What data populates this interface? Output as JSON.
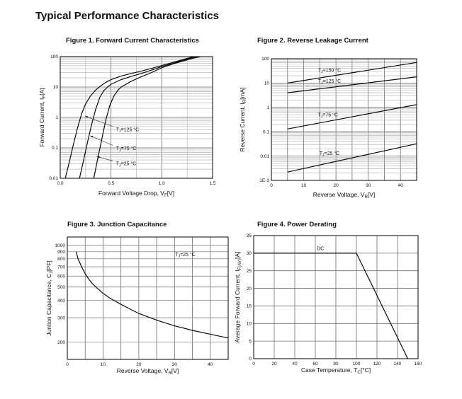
{
  "page": {
    "title": "Typical Performance Characteristics",
    "colors": {
      "background": "#ffffff",
      "text": "#111111",
      "curve": "#0a0a0a",
      "grid_minor": "#ababab",
      "grid_major": "#6e6e6e",
      "border": "#000000"
    }
  },
  "chart_data": [
    {
      "id": "figure-1",
      "type": "line",
      "title": "Figure 1. Forward Current Characteristics",
      "xlabel": "Forward Voltage Drop, V_{F}[V]",
      "ylabel": "Forward Current, I_{F}[A]",
      "x_axis": {
        "min": 0,
        "max": 1.5,
        "scale": "linear",
        "grid_step": 0.5,
        "grid_minor_step": 0.25,
        "ticks": [
          {
            "v": 0,
            "t": "0.0"
          },
          {
            "v": 0.5,
            "t": "0.5"
          },
          {
            "v": 1.0,
            "t": "1.0"
          },
          {
            "v": 1.5,
            "t": "1.5"
          }
        ]
      },
      "y_axis": {
        "min": 0.01,
        "max": 100,
        "scale": "log",
        "log_minor_grid": true,
        "ticks": [
          {
            "v": 100,
            "t": "100"
          },
          {
            "v": 10,
            "t": "10"
          },
          {
            "v": 1,
            "t": "1"
          },
          {
            "v": 0.1,
            "t": "0.1"
          },
          {
            "v": 0.01,
            "t": "0.01"
          }
        ]
      },
      "series": [
        {
          "name": "TJ=125 °C",
          "points": [
            [
              0.05,
              0.01
            ],
            [
              0.09,
              0.035
            ],
            [
              0.13,
              0.13
            ],
            [
              0.17,
              0.45
            ],
            [
              0.21,
              1.3
            ],
            [
              0.25,
              2.8
            ],
            [
              0.3,
              5.2
            ],
            [
              0.35,
              8
            ],
            [
              0.4,
              11
            ],
            [
              0.45,
              14.3
            ],
            [
              0.5,
              17.5
            ],
            [
              0.6,
              23
            ],
            [
              0.7,
              28
            ],
            [
              0.8,
              33.5
            ],
            [
              0.9,
              41
            ],
            [
              1.0,
              51
            ],
            [
              1.1,
              63
            ],
            [
              1.2,
              78
            ],
            [
              1.3,
              97
            ],
            [
              1.32,
              100
            ]
          ]
        },
        {
          "name": "TJ=75 °C",
          "points": [
            [
              0.19,
              0.01
            ],
            [
              0.23,
              0.04
            ],
            [
              0.27,
              0.16
            ],
            [
              0.31,
              0.6
            ],
            [
              0.35,
              1.9
            ],
            [
              0.39,
              4.6
            ],
            [
              0.43,
              7.6
            ],
            [
              0.47,
              10.3
            ],
            [
              0.5,
              12.3
            ],
            [
              0.6,
              17.5
            ],
            [
              0.7,
              22.5
            ],
            [
              0.8,
              28
            ],
            [
              0.9,
              36
            ],
            [
              1.0,
              47
            ],
            [
              1.1,
              59
            ],
            [
              1.2,
              74
            ],
            [
              1.3,
              92
            ],
            [
              1.34,
              100
            ]
          ]
        },
        {
          "name": "TJ=25 °C",
          "points": [
            [
              0.33,
              0.01
            ],
            [
              0.37,
              0.045
            ],
            [
              0.41,
              0.2
            ],
            [
              0.45,
              0.85
            ],
            [
              0.49,
              2.6
            ],
            [
              0.53,
              5.2
            ],
            [
              0.57,
              8
            ],
            [
              0.6,
              10
            ],
            [
              0.7,
              15.5
            ],
            [
              0.8,
              22
            ],
            [
              0.9,
              30
            ],
            [
              1.0,
              43
            ],
            [
              1.1,
              56
            ],
            [
              1.2,
              70
            ],
            [
              1.3,
              87
            ],
            [
              1.38,
              100
            ]
          ]
        }
      ],
      "annotations": [
        {
          "text": "T_{J}=125 °C",
          "x": 0.55,
          "y": 0.4,
          "anchor": "start"
        },
        {
          "text": "T_{J}=75 °C",
          "x": 0.55,
          "y": 0.095,
          "anchor": "start"
        },
        {
          "text": "T_{J}=25 °C",
          "x": 0.55,
          "y": 0.03,
          "anchor": "start"
        }
      ],
      "arrows": [
        {
          "x1": 0.52,
          "y1": 0.5,
          "x2": 0.245,
          "y2": 1.1
        },
        {
          "x1": 0.52,
          "y1": 0.12,
          "x2": 0.295,
          "y2": 0.25
        },
        {
          "x1": 0.52,
          "y1": 0.037,
          "x2": 0.36,
          "y2": 0.052
        }
      ]
    },
    {
      "id": "figure-2",
      "type": "line",
      "title": "Figure 2. Reverse Leakage Current",
      "xlabel": "Reverse Voltage, V_{R}[V]",
      "ylabel": "Reverse Current, I_{R}[mA]",
      "x_axis": {
        "min": 0,
        "max": 45,
        "scale": "linear",
        "grid_step": 5,
        "ticks": [
          {
            "v": 0,
            "t": "0"
          },
          {
            "v": 10,
            "t": "10"
          },
          {
            "v": 20,
            "t": "20"
          },
          {
            "v": 30,
            "t": "30"
          },
          {
            "v": 40,
            "t": "40"
          }
        ]
      },
      "y_axis": {
        "min": 0.001,
        "max": 100,
        "scale": "log",
        "log_minor_grid": true,
        "ticks": [
          {
            "v": 100,
            "t": "100"
          },
          {
            "v": 10,
            "t": "10"
          },
          {
            "v": 1,
            "t": "1"
          },
          {
            "v": 0.1,
            "t": "0.1"
          },
          {
            "v": 0.01,
            "t": "0.01"
          },
          {
            "v": 0.001,
            "t": "1E-3"
          }
        ]
      },
      "series": [
        {
          "name": "TJ=150 °C",
          "points": [
            [
              5,
              10
            ],
            [
              45,
              70
            ]
          ]
        },
        {
          "name": "TJ=125 °C",
          "points": [
            [
              5,
              4
            ],
            [
              45,
              18
            ]
          ]
        },
        {
          "name": "TJ=75 °C",
          "points": [
            [
              5,
              0.13
            ],
            [
              45,
              1.3
            ]
          ]
        },
        {
          "name": "TJ=25 °C",
          "points": [
            [
              5,
              0.0022
            ],
            [
              45,
              0.032
            ]
          ]
        }
      ],
      "annotations": [
        {
          "text": "T_{J}=150 °C",
          "x": 18,
          "y": 34,
          "anchor": "middle"
        },
        {
          "text": "T_{J}=125 °C",
          "x": 18,
          "y": 12,
          "anchor": "middle"
        },
        {
          "text": "T_{J}=75 °C",
          "x": 17.5,
          "y": 0.5,
          "anchor": "middle"
        },
        {
          "text": "T_{J}=25 °C",
          "x": 18,
          "y": 0.013,
          "anchor": "middle"
        }
      ],
      "arrows": []
    },
    {
      "id": "figure-3",
      "type": "line",
      "title": "Figure 3. Junction Capacitance",
      "xlabel": "Reverse Voltage, V_{R}[V]",
      "ylabel": "Juntion Capacitance, C_{J}[PF]",
      "x_axis": {
        "min": 0,
        "max": 45,
        "scale": "linear",
        "grid_step": 5,
        "ticks": [
          {
            "v": 0,
            "t": "0"
          },
          {
            "v": 10,
            "t": "10"
          },
          {
            "v": 20,
            "t": "20"
          },
          {
            "v": 30,
            "t": "30"
          },
          {
            "v": 40,
            "t": "40"
          }
        ]
      },
      "y_axis": {
        "min": 150,
        "max": 1150,
        "scale": "log",
        "grid_values": [
          200,
          300,
          400,
          500,
          600,
          700,
          800,
          900,
          1000
        ],
        "ticks": [
          {
            "v": 1000,
            "t": "1000"
          },
          {
            "v": 900,
            "t": "900"
          },
          {
            "v": 800,
            "t": "800"
          },
          {
            "v": 700,
            "t": "700"
          },
          {
            "v": 600,
            "t": "600"
          },
          {
            "v": 500,
            "t": "500"
          },
          {
            "v": 400,
            "t": "400"
          },
          {
            "v": 300,
            "t": "300"
          },
          {
            "v": 200,
            "t": "200"
          }
        ]
      },
      "series": [
        {
          "name": "TJ=25 °C",
          "points": [
            [
              2.5,
              900
            ],
            [
              3,
              800
            ],
            [
              4,
              700
            ],
            [
              5,
              625
            ],
            [
              6,
              570
            ],
            [
              7,
              530
            ],
            [
              8,
              500
            ],
            [
              10,
              450
            ],
            [
              12,
              415
            ],
            [
              15,
              375
            ],
            [
              18,
              342
            ],
            [
              20,
              322
            ],
            [
              25,
              288
            ],
            [
              30,
              262
            ],
            [
              35,
              243
            ],
            [
              40,
              228
            ],
            [
              45,
              214
            ]
          ]
        }
      ],
      "annotations": [
        {
          "text": "T_{J}=25 °C",
          "x": 33,
          "y": 860,
          "anchor": "middle"
        }
      ],
      "arrows": []
    },
    {
      "id": "figure-4",
      "type": "line",
      "title": "Figure 4. Power Derating",
      "xlabel": "Case Temperature, T_{C}[°C]",
      "ylabel": "Average Forward Current, I_{F(AV)}[A]",
      "x_axis": {
        "min": 0,
        "max": 160,
        "scale": "linear",
        "grid_step": 20,
        "ticks": [
          {
            "v": 0,
            "t": "0"
          },
          {
            "v": 20,
            "t": "20"
          },
          {
            "v": 40,
            "t": "40"
          },
          {
            "v": 60,
            "t": "60"
          },
          {
            "v": 80,
            "t": "80"
          },
          {
            "v": 100,
            "t": "100"
          },
          {
            "v": 120,
            "t": "120"
          },
          {
            "v": 140,
            "t": "140"
          },
          {
            "v": 160,
            "t": "160"
          }
        ]
      },
      "y_axis": {
        "min": 0,
        "max": 35,
        "scale": "linear",
        "grid_step": 5,
        "ticks": [
          {
            "v": 35,
            "t": "35"
          },
          {
            "v": 30,
            "t": "30"
          },
          {
            "v": 25,
            "t": "25"
          },
          {
            "v": 20,
            "t": "20"
          },
          {
            "v": 15,
            "t": "15"
          },
          {
            "v": 10,
            "t": "10"
          },
          {
            "v": 5,
            "t": "5"
          },
          {
            "v": 0,
            "t": "0"
          }
        ]
      },
      "series": [
        {
          "name": "DC",
          "points": [
            [
              0,
              30
            ],
            [
              100,
              30
            ],
            [
              150,
              0
            ]
          ]
        }
      ],
      "annotations": [
        {
          "text": "DC",
          "x": 65,
          "y": 31.3,
          "anchor": "middle"
        }
      ],
      "arrows": []
    }
  ]
}
